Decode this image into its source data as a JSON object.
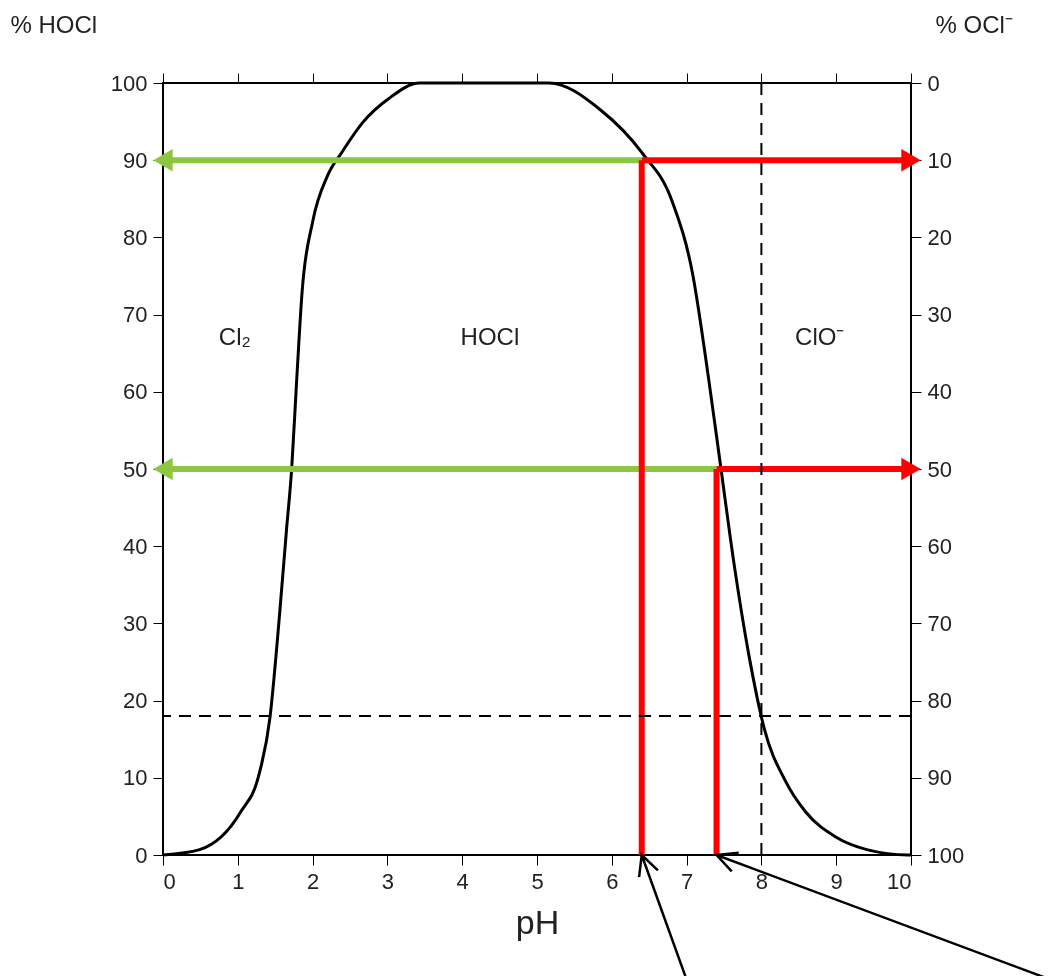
{
  "chart_data": {
    "type": "line",
    "xlabel": "pH",
    "ylabel": "% HOCl",
    "y2label": "% OCl⁻",
    "xlim": [
      0,
      10
    ],
    "xticks": [
      0,
      1,
      2,
      3,
      4,
      5,
      6,
      7,
      8,
      9,
      10
    ],
    "ylim": [
      0,
      100
    ],
    "yticks": [
      0,
      10,
      20,
      30,
      40,
      50,
      60,
      70,
      80,
      90,
      100
    ],
    "y2lim": [
      100,
      0
    ],
    "y2ticks": [
      0,
      10,
      20,
      30,
      40,
      50,
      60,
      70,
      80,
      90,
      100
    ],
    "grid": false,
    "series": [
      {
        "type": "line",
        "color": "#000000",
        "x": [
          0,
          0.49,
          1.04,
          1.28,
          1.43,
          1.55,
          1.65,
          1.72,
          1.79,
          1.86,
          2.0,
          2.2,
          2.39,
          2.68,
          3.02,
          3.43,
          5.16,
          5.85,
          6.4,
          6.81,
          7.08,
          7.29,
          7.46,
          7.63,
          7.84,
          8.04,
          8.32,
          8.59,
          9.0,
          9.41,
          9.96,
          10
        ],
        "values": [
          0,
          0.7,
          5.6,
          10.3,
          17.8,
          30.2,
          42,
          50,
          62,
          73,
          82,
          88,
          91,
          95,
          98,
          100,
          100,
          96.5,
          91,
          84.6,
          75.3,
          62,
          50,
          38,
          25.5,
          16.3,
          9.6,
          5.6,
          2.3,
          0.7,
          0,
          0
        ]
      },
      {
        "type": "line",
        "color": "#8dc63f",
        "x": [
          6.4,
          0
        ],
        "values": [
          90,
          90
        ],
        "marker": "triangle"
      },
      {
        "type": "line",
        "color": "#8dc63f",
        "x": [
          7.4,
          0
        ],
        "values": [
          50,
          50
        ],
        "marker": "triangle"
      },
      {
        "type": "line",
        "color": "#ff0000",
        "x": [
          6.4,
          10
        ],
        "values": [
          90,
          90
        ],
        "marker": "triangle"
      },
      {
        "type": "line",
        "color": "#ff0000",
        "x": [
          7.4,
          10
        ],
        "values": [
          50,
          50
        ],
        "marker": "triangle"
      },
      {
        "type": "line",
        "color": "#ff0000",
        "x": [
          6.4,
          6.4
        ],
        "values": [
          0,
          90
        ]
      },
      {
        "type": "line",
        "color": "#ff0000",
        "x": [
          7.4,
          7.4
        ],
        "values": [
          0,
          50
        ]
      }
    ],
    "ref_lines": [
      {
        "axis": "x",
        "value": 8,
        "color": "#000000",
        "line_style": "dashed"
      },
      {
        "axis": "y",
        "value": 18,
        "color": "#000000",
        "line_style": "dashed"
      }
    ],
    "annotations": [
      "Cl₂",
      "HOCl",
      "ClO⁻"
    ]
  }
}
